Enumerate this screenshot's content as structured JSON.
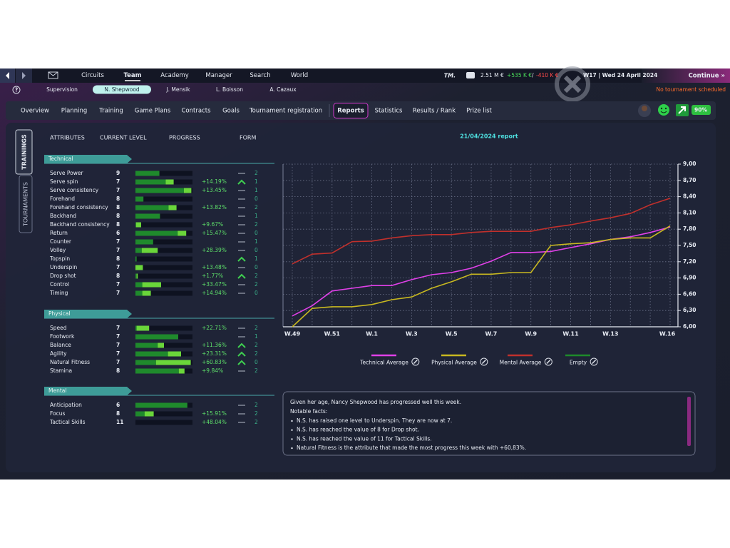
{
  "nav": {
    "items": [
      "Circuits",
      "Team",
      "Academy",
      "Manager",
      "Search",
      "World"
    ],
    "active": 1
  },
  "finance": {
    "logo": "TM.",
    "balance": "2.51 M €",
    "income": "+535 K €",
    "separator": "/",
    "expenses": "-410 K €"
  },
  "date": "W17 | Wed 24 April 2024",
  "continue": "Continue »",
  "status": "No tournament scheduled",
  "team": {
    "members": [
      "Supervision",
      "N. Shepwood",
      "J. Mensik",
      "L. Boisson",
      "A. Cazaux"
    ],
    "active": 1
  },
  "tabs": {
    "items": [
      "Overview",
      "Planning",
      "Training",
      "Game Plans",
      "Contracts",
      "Goals",
      "Tournament registration",
      "Reports",
      "Statistics",
      "Results / Rank",
      "Prize list"
    ],
    "active": 7
  },
  "condition": "90%",
  "side_tabs": [
    "TRAININGS",
    "TOURNAMENTS"
  ],
  "attributes": {
    "headers": [
      "ATTRIBUTES",
      "CURRENT LEVEL",
      "PROGRESS",
      "FORM"
    ],
    "groups": [
      {
        "name": "Technical",
        "rows": [
          {
            "name": "Serve Power",
            "level": 9,
            "bar": {
              "base": 42,
              "gain": 0
            },
            "trend": "flat",
            "form": 2
          },
          {
            "name": "Serve spin",
            "level": 7,
            "bar": {
              "base": 53,
              "gain": 14
            },
            "progress": "+14.19%",
            "trend": "up",
            "form": 1
          },
          {
            "name": "Serve consistency",
            "level": 7,
            "bar": {
              "base": 85,
              "gain": 13
            },
            "progress": "+13.45%",
            "trend": "flat",
            "form": 1
          },
          {
            "name": "Forehand",
            "level": 8,
            "bar": {
              "base": 14,
              "gain": 0
            },
            "trend": "flat",
            "form": 0
          },
          {
            "name": "Forehand consistency",
            "level": 8,
            "bar": {
              "base": 58,
              "gain": 14
            },
            "progress": "+13.82%",
            "trend": "flat",
            "form": 2
          },
          {
            "name": "Backhand",
            "level": 8,
            "bar": {
              "base": 43,
              "gain": 0
            },
            "trend": "flat",
            "form": 1
          },
          {
            "name": "Backhand consistency",
            "level": 8,
            "bar": {
              "base": 1,
              "gain": 9
            },
            "progress": "+9.67%",
            "trend": "flat",
            "form": 2
          },
          {
            "name": "Return",
            "level": 6,
            "bar": {
              "base": 74,
              "gain": 15
            },
            "progress": "+15.47%",
            "trend": "flat",
            "form": 0
          },
          {
            "name": "Counter",
            "level": 7,
            "bar": {
              "base": 31,
              "gain": 0
            },
            "trend": "flat",
            "form": 1
          },
          {
            "name": "Volley",
            "level": 7,
            "bar": {
              "base": 11,
              "gain": 28
            },
            "progress": "+28.39%",
            "trend": "flat",
            "form": 0
          },
          {
            "name": "Topspin",
            "level": 8,
            "bar": {
              "base": 2,
              "gain": 0
            },
            "trend": "up",
            "form": 1
          },
          {
            "name": "Underspin",
            "level": 7,
            "bar": {
              "base": 0,
              "gain": 13
            },
            "progress": "+13.48%",
            "trend": "flat",
            "form": 0
          },
          {
            "name": "Drop shot",
            "level": 8,
            "bar": {
              "base": 2,
              "gain": 2
            },
            "progress": "+1.77%",
            "trend": "up",
            "form": 2
          },
          {
            "name": "Control",
            "level": 7,
            "bar": {
              "base": 12,
              "gain": 33
            },
            "progress": "+33.47%",
            "trend": "flat",
            "form": 2
          },
          {
            "name": "Timing",
            "level": 7,
            "bar": {
              "base": 12,
              "gain": 15
            },
            "progress": "+14.94%",
            "trend": "flat",
            "form": 0
          }
        ]
      },
      {
        "name": "Physical",
        "rows": [
          {
            "name": "Speed",
            "level": 7,
            "bar": {
              "base": 2,
              "gain": 22
            },
            "progress": "+22.71%",
            "trend": "flat",
            "form": 2
          },
          {
            "name": "Footwork",
            "level": 7,
            "bar": {
              "base": 75,
              "gain": 0
            },
            "trend": "flat",
            "form": 1
          },
          {
            "name": "Balance",
            "level": 7,
            "bar": {
              "base": 39,
              "gain": 11
            },
            "progress": "+11.36%",
            "trend": "up",
            "form": 2
          },
          {
            "name": "Agility",
            "level": 7,
            "bar": {
              "base": 57,
              "gain": 23
            },
            "progress": "+23.31%",
            "trend": "up",
            "form": 2
          },
          {
            "name": "Natural Fitness",
            "level": 7,
            "bar": {
              "base": 36,
              "gain": 61
            },
            "progress": "+60.83%",
            "trend": "up",
            "form": 0
          },
          {
            "name": "Stamina",
            "level": 8,
            "bar": {
              "base": 76,
              "gain": 10
            },
            "progress": "+9.84%",
            "trend": "flat",
            "form": 2
          }
        ]
      },
      {
        "name": "Mental",
        "rows": [
          {
            "name": "Anticipation",
            "level": 6,
            "bar": {
              "base": 91,
              "gain": 0
            },
            "trend": "flat",
            "form": 2
          },
          {
            "name": "Focus",
            "level": 8,
            "bar": {
              "base": 16,
              "gain": 16
            },
            "progress": "+15.91%",
            "trend": "flat",
            "form": 2
          },
          {
            "name": "Tactical Skills",
            "level": 11,
            "bar": {
              "base": 0,
              "gain": 0
            },
            "progress": "+48.04%",
            "trend": "flat",
            "form": 2
          }
        ]
      }
    ]
  },
  "chart_data": {
    "type": "line",
    "title": "21/04/2024 report",
    "categories": [
      "W.49",
      null,
      "W.51",
      null,
      "W.1",
      null,
      "W.3",
      null,
      "W.5",
      null,
      "W.7",
      null,
      "W.9",
      null,
      "W.11",
      null,
      "W.13",
      null,
      null,
      "W.16"
    ],
    "ylim": [
      6,
      9
    ],
    "yticks": [
      {
        "value": 6,
        "label": "6,00"
      },
      {
        "value": 6.3,
        "label": "6,30"
      },
      {
        "value": 6.6,
        "label": "6,60"
      },
      {
        "value": 6.9,
        "label": "6,90"
      },
      {
        "value": 7.2,
        "label": "7,20"
      },
      {
        "value": 7.5,
        "label": "7,50"
      },
      {
        "value": 7.8,
        "label": "7,80"
      },
      {
        "value": 8.1,
        "label": "8,10"
      },
      {
        "value": 8.4,
        "label": "8,40"
      },
      {
        "value": 8.7,
        "label": "8,70"
      },
      {
        "value": 9,
        "label": "9,00"
      }
    ],
    "grid": true,
    "series": [
      {
        "name": "Technical Average",
        "color": "#e040e8",
        "values": [
          6.2,
          6.39,
          6.66,
          6.71,
          6.76,
          6.76,
          6.87,
          6.96,
          7.0,
          7.08,
          7.21,
          7.37,
          7.37,
          7.39,
          7.46,
          7.53,
          7.61,
          7.66,
          7.74,
          7.84
        ]
      },
      {
        "name": "Physical Average",
        "color": "#c8b820",
        "values": [
          6.0,
          6.34,
          6.37,
          6.37,
          6.41,
          6.5,
          6.55,
          6.71,
          6.83,
          6.97,
          6.97,
          7.0,
          7.0,
          7.5,
          7.53,
          7.55,
          7.61,
          7.64,
          7.64,
          7.86
        ]
      },
      {
        "name": "Mental Average",
        "color": "#c0302c",
        "values": [
          7.16,
          7.34,
          7.36,
          7.57,
          7.58,
          7.64,
          7.68,
          7.7,
          7.7,
          7.74,
          7.76,
          7.76,
          7.76,
          7.83,
          7.88,
          7.95,
          8.01,
          8.09,
          8.25,
          8.37
        ]
      },
      {
        "name": "Empty",
        "color": "#1e8a2a",
        "values": [
          null,
          null,
          null,
          null,
          null,
          null,
          null,
          null,
          null,
          null,
          null,
          null,
          null,
          null,
          null,
          null,
          null,
          null,
          null,
          null
        ]
      }
    ]
  },
  "report": {
    "intro": "Given her age, Nancy Shepwood has progressed well this week.",
    "facts_title": "Notable facts:",
    "facts": [
      "N.S. has raised one level to Underspin. They are now at 7.",
      "N.S. has reached the value of 8 for Drop shot.",
      "N.S. has reached the value of 11 for Tactical Skills.",
      "Natural Fitness is the attribute that made the most progress this week with +60,83%."
    ]
  }
}
